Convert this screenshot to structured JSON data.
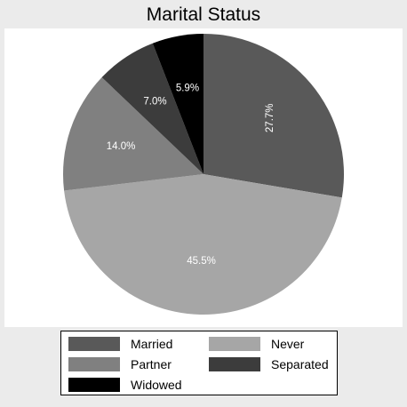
{
  "chart_data": {
    "type": "pie",
    "title": "Marital Status",
    "start_angle_deg": 0,
    "direction": "clockwise",
    "slices": [
      {
        "name": "Married",
        "value": 27.7,
        "label": "27.7%",
        "color": "#595959",
        "label_rotated": true
      },
      {
        "name": "Never",
        "value": 45.5,
        "label": "45.5%",
        "color": "#a6a6a6",
        "label_rotated": false
      },
      {
        "name": "Partner",
        "value": 14.0,
        "label": "14.0%",
        "color": "#808080",
        "label_rotated": false
      },
      {
        "name": "Separated",
        "value": 7.0,
        "label": "7.0%",
        "color": "#3c3c3c",
        "label_rotated": false
      },
      {
        "name": "Widowed",
        "value": 5.9,
        "label": "5.9%",
        "color": "#000000",
        "label_rotated": false
      }
    ],
    "legend": {
      "placement": "bottom",
      "columns": 2,
      "items": [
        "Married",
        "Never",
        "Partner",
        "Separated",
        "Widowed"
      ]
    },
    "background_color": "#ebebeb",
    "plot_background_color": "#ffffff",
    "label_color": "#ffffff"
  }
}
